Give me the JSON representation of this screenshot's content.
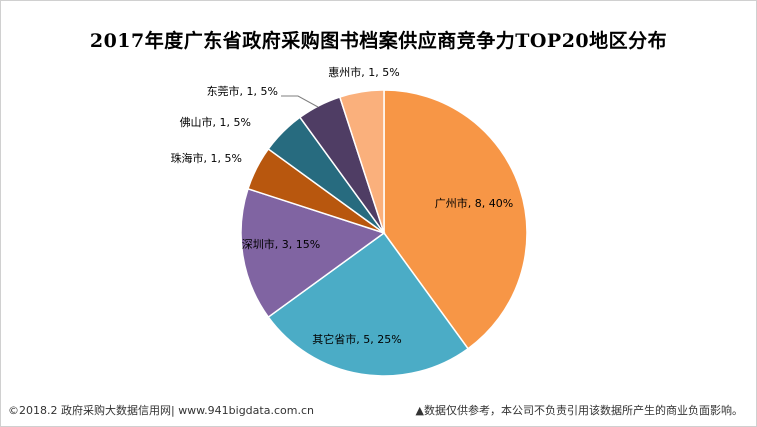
{
  "chart_data": {
    "type": "pie",
    "title": "2017年度广东省政府采购图书档案供应商竞争力TOP20地区分布",
    "slices": [
      {
        "label": "广州市",
        "value": 8,
        "percent": "40%",
        "color": "#F79646"
      },
      {
        "label": "其它省市",
        "value": 5,
        "percent": "25%",
        "color": "#4BACC6"
      },
      {
        "label": "深圳市",
        "value": 3,
        "percent": "15%",
        "color": "#8064A2"
      },
      {
        "label": "珠海市",
        "value": 1,
        "percent": "5%",
        "color": "#B8570E"
      },
      {
        "label": "佛山市",
        "value": 1,
        "percent": "5%",
        "color": "#276B7F"
      },
      {
        "label": "东莞市",
        "value": 1,
        "percent": "5%",
        "color": "#4F3D64"
      },
      {
        "label": "惠州市",
        "value": 1,
        "percent": "5%",
        "color": "#FAB07C"
      }
    ]
  },
  "footer": {
    "source": "©2018.2 政府采购大数据信用网| www.941bigdata.com.cn",
    "disclaimer": "▲数据仅供参考，本公司不负责引用该数据所产生的商业负面影响。"
  }
}
